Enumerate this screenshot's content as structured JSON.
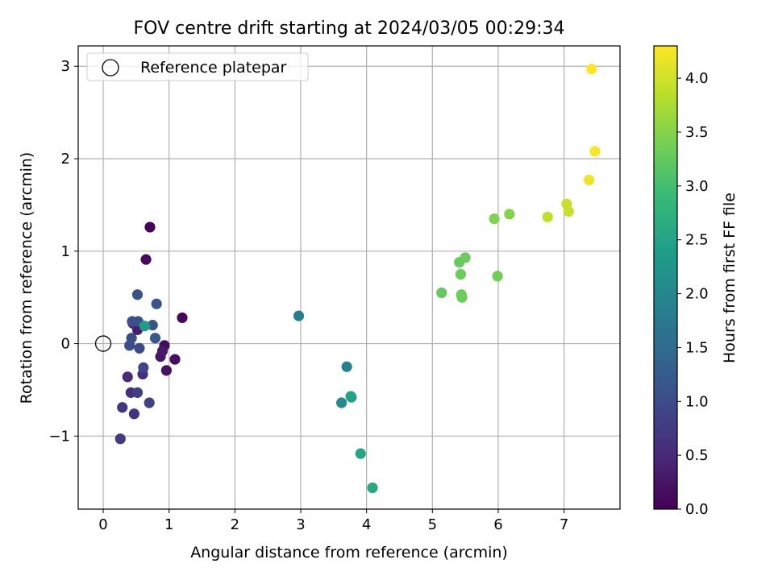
{
  "chart_data": {
    "type": "scatter",
    "title": "FOV centre drift starting at 2024/03/05 00:29:34",
    "xlabel": "Angular distance from reference (arcmin)",
    "ylabel": "Rotation from reference (arcmin)",
    "xlim": [
      -0.38,
      7.85
    ],
    "ylim": [
      -1.79,
      3.22
    ],
    "xticks": [
      0,
      1,
      2,
      3,
      4,
      5,
      6,
      7
    ],
    "yticks": [
      -1,
      0,
      1,
      2,
      3
    ],
    "ytick_labels": [
      "−1",
      "0",
      "1",
      "2",
      "3"
    ],
    "grid": true,
    "legend": {
      "position": "top-left",
      "entries": [
        {
          "label": "Reference platepar",
          "marker": "hollow-circle",
          "color": "#000000"
        }
      ]
    },
    "reference_point": {
      "x": 0,
      "y": 0
    },
    "colorbar": {
      "label": "Hours from first FF file",
      "colormap": "viridis",
      "range": [
        0.0,
        4.3
      ],
      "ticks": [
        0.0,
        0.5,
        1.0,
        1.5,
        2.0,
        2.5,
        3.0,
        3.5,
        4.0
      ],
      "tick_labels": [
        "0.0",
        "0.5",
        "1.0",
        "1.5",
        "2.0",
        "2.5",
        "3.0",
        "3.5",
        "4.0"
      ]
    },
    "points": [
      {
        "x": 0.71,
        "y": 1.26,
        "hours": 0.05
      },
      {
        "x": 1.2,
        "y": 0.28,
        "hours": 0.08
      },
      {
        "x": 0.65,
        "y": 0.91,
        "hours": 0.12
      },
      {
        "x": 0.93,
        "y": -0.02,
        "hours": 0.15
      },
      {
        "x": 1.09,
        "y": -0.17,
        "hours": 0.18
      },
      {
        "x": 0.96,
        "y": -0.29,
        "hours": 0.21
      },
      {
        "x": 0.87,
        "y": -0.14,
        "hours": 0.25
      },
      {
        "x": 0.9,
        "y": -0.08,
        "hours": 0.28
      },
      {
        "x": 0.52,
        "y": 0.15,
        "hours": 0.35
      },
      {
        "x": 0.45,
        "y": 0.22,
        "hours": 0.42
      },
      {
        "x": 0.37,
        "y": -0.36,
        "hours": 0.5
      },
      {
        "x": 0.6,
        "y": -0.33,
        "hours": 0.55
      },
      {
        "x": 0.42,
        "y": -0.53,
        "hours": 0.6
      },
      {
        "x": 0.47,
        "y": -0.76,
        "hours": 0.65
      },
      {
        "x": 0.29,
        "y": -0.69,
        "hours": 0.7
      },
      {
        "x": 0.26,
        "y": -1.03,
        "hours": 0.75
      },
      {
        "x": 0.52,
        "y": -0.53,
        "hours": 0.8
      },
      {
        "x": 0.7,
        "y": -0.64,
        "hours": 0.85
      },
      {
        "x": 0.61,
        "y": -0.26,
        "hours": 0.9
      },
      {
        "x": 0.55,
        "y": -0.05,
        "hours": 0.95
      },
      {
        "x": 0.4,
        "y": -0.02,
        "hours": 1.0
      },
      {
        "x": 0.43,
        "y": 0.06,
        "hours": 1.02
      },
      {
        "x": 0.44,
        "y": 0.24,
        "hours": 1.05
      },
      {
        "x": 0.53,
        "y": 0.24,
        "hours": 1.08
      },
      {
        "x": 0.52,
        "y": 0.53,
        "hours": 1.1
      },
      {
        "x": 0.81,
        "y": 0.43,
        "hours": 1.12
      },
      {
        "x": 0.75,
        "y": 0.2,
        "hours": 1.15
      },
      {
        "x": 0.79,
        "y": 0.06,
        "hours": 1.2
      },
      {
        "x": 0.63,
        "y": 0.19,
        "hours": 2.35
      },
      {
        "x": 2.97,
        "y": 0.3,
        "hours": 1.85
      },
      {
        "x": 3.7,
        "y": -0.25,
        "hours": 1.9
      },
      {
        "x": 3.62,
        "y": -0.64,
        "hours": 2.05
      },
      {
        "x": 3.77,
        "y": -0.58,
        "hours": 2.45
      },
      {
        "x": 3.76,
        "y": -0.57,
        "hours": 2.5
      },
      {
        "x": 3.91,
        "y": -1.19,
        "hours": 2.55
      },
      {
        "x": 4.09,
        "y": -1.56,
        "hours": 2.6
      },
      {
        "x": 5.14,
        "y": 0.55,
        "hours": 3.25
      },
      {
        "x": 5.41,
        "y": 0.88,
        "hours": 3.28
      },
      {
        "x": 5.5,
        "y": 0.93,
        "hours": 3.3
      },
      {
        "x": 5.43,
        "y": 0.75,
        "hours": 3.3
      },
      {
        "x": 5.44,
        "y": 0.53,
        "hours": 3.3
      },
      {
        "x": 5.45,
        "y": 0.5,
        "hours": 3.3
      },
      {
        "x": 5.99,
        "y": 0.73,
        "hours": 3.35
      },
      {
        "x": 5.94,
        "y": 1.35,
        "hours": 3.45
      },
      {
        "x": 6.17,
        "y": 1.4,
        "hours": 3.5
      },
      {
        "x": 6.75,
        "y": 1.37,
        "hours": 3.9
      },
      {
        "x": 7.04,
        "y": 1.51,
        "hours": 3.95
      },
      {
        "x": 7.07,
        "y": 1.43,
        "hours": 3.95
      },
      {
        "x": 7.38,
        "y": 1.77,
        "hours": 4.2
      },
      {
        "x": 7.47,
        "y": 2.08,
        "hours": 4.25
      },
      {
        "x": 7.42,
        "y": 2.97,
        "hours": 4.3
      }
    ]
  }
}
